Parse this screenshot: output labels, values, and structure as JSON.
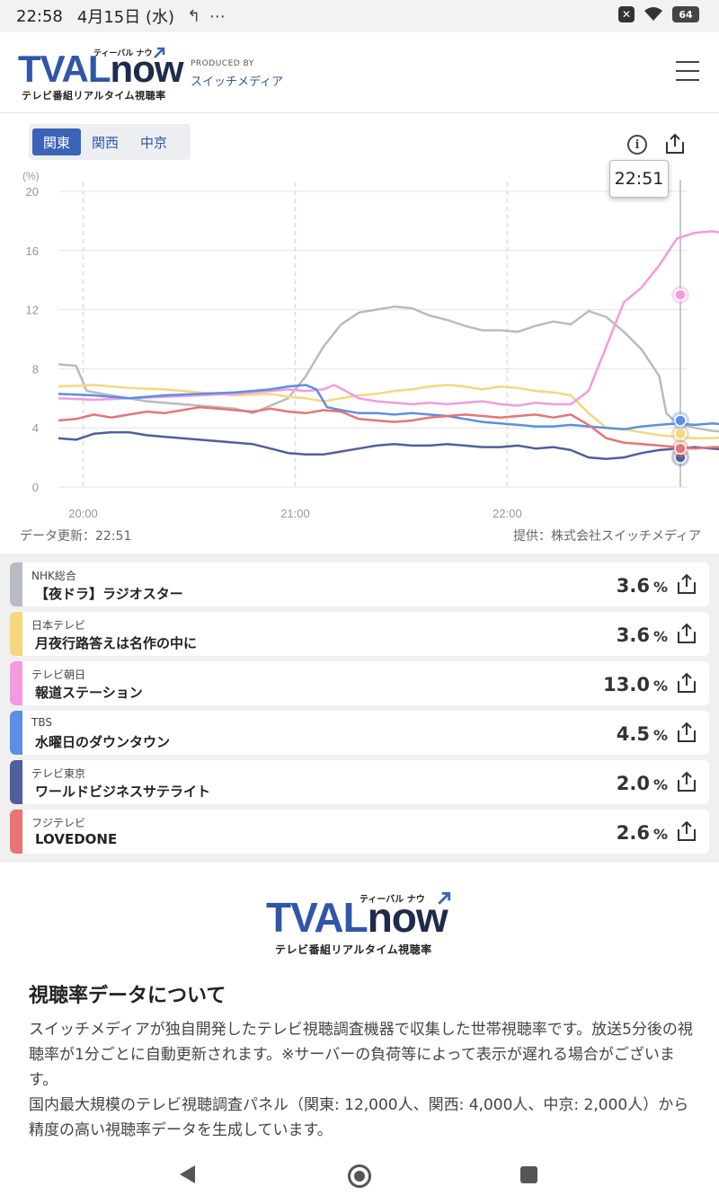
{
  "status_bar": {
    "time": "22:58",
    "date": "4月15日 (水)",
    "icons": "↰ ⋯",
    "battery": "64"
  },
  "header": {
    "logo_tval": "TVAL",
    "logo_now": "now",
    "logo_kana": "ティーバル ナウ",
    "logo_sub": "テレビ番組リアルタイム視聴率",
    "produced_by": "PRODUCED BY",
    "company": "スイッチメディア"
  },
  "tabs": [
    {
      "label": "関東",
      "active": true
    },
    {
      "label": "関西",
      "active": false
    },
    {
      "label": "中京",
      "active": false
    }
  ],
  "tooltip_time": "22:51",
  "chart_data": {
    "type": "line",
    "unit_label": "(%)",
    "ylim": [
      0,
      20
    ],
    "yticks": [
      "20",
      "16",
      "12",
      "8",
      "4",
      "0"
    ],
    "xticks": [
      "20:00",
      "21:00",
      "22:00"
    ],
    "x_range": [
      "19:53",
      "22:51"
    ],
    "grid": true,
    "series": [
      {
        "name": "NHK総合",
        "color": "#b7bcc2",
        "points": [
          [
            0,
            8.3
          ],
          [
            5,
            8.2
          ],
          [
            8,
            6.5
          ],
          [
            15,
            6.2
          ],
          [
            25,
            5.8
          ],
          [
            40,
            5.5
          ],
          [
            50,
            5.3
          ],
          [
            55,
            5.0
          ],
          [
            60,
            5.5
          ],
          [
            65,
            6.0
          ],
          [
            70,
            7.5
          ],
          [
            75,
            9.5
          ],
          [
            80,
            11.0
          ],
          [
            85,
            11.8
          ],
          [
            90,
            12.0
          ],
          [
            95,
            12.2
          ],
          [
            100,
            12.1
          ],
          [
            105,
            11.6
          ],
          [
            110,
            11.3
          ],
          [
            115,
            10.9
          ],
          [
            120,
            10.6
          ],
          [
            125,
            10.6
          ],
          [
            130,
            10.5
          ],
          [
            135,
            10.9
          ],
          [
            140,
            11.2
          ],
          [
            145,
            11.0
          ],
          [
            150,
            11.9
          ],
          [
            155,
            11.5
          ],
          [
            160,
            10.5
          ],
          [
            165,
            9.3
          ],
          [
            170,
            7.5
          ],
          [
            172,
            5.0
          ],
          [
            175,
            4.3
          ],
          [
            180,
            4.0
          ],
          [
            185,
            3.8
          ],
          [
            190,
            3.7
          ],
          [
            195,
            3.7
          ],
          [
            200,
            3.6
          ],
          [
            205,
            3.6
          ],
          [
            210,
            3.6
          ],
          [
            215,
            3.6
          ],
          [
            220,
            3.6
          ],
          [
            225,
            3.6
          ],
          [
            232,
            3.6
          ]
        ]
      },
      {
        "name": "日本テレビ",
        "color": "#f6d77d",
        "points": [
          [
            0,
            6.8
          ],
          [
            10,
            6.9
          ],
          [
            20,
            6.7
          ],
          [
            30,
            6.6
          ],
          [
            40,
            6.4
          ],
          [
            50,
            6.2
          ],
          [
            60,
            6.3
          ],
          [
            65,
            6.1
          ],
          [
            70,
            6.0
          ],
          [
            75,
            5.8
          ],
          [
            80,
            6.0
          ],
          [
            85,
            6.2
          ],
          [
            90,
            6.3
          ],
          [
            95,
            6.5
          ],
          [
            100,
            6.6
          ],
          [
            105,
            6.8
          ],
          [
            110,
            6.9
          ],
          [
            115,
            6.8
          ],
          [
            120,
            6.6
          ],
          [
            125,
            6.8
          ],
          [
            130,
            6.7
          ],
          [
            135,
            6.5
          ],
          [
            140,
            6.4
          ],
          [
            145,
            6.2
          ],
          [
            150,
            5.0
          ],
          [
            155,
            4.0
          ],
          [
            160,
            3.9
          ],
          [
            165,
            3.7
          ],
          [
            170,
            3.5
          ],
          [
            175,
            3.4
          ],
          [
            180,
            3.3
          ],
          [
            185,
            3.3
          ],
          [
            190,
            3.4
          ],
          [
            195,
            3.5
          ],
          [
            200,
            3.4
          ],
          [
            205,
            3.5
          ],
          [
            210,
            3.6
          ],
          [
            215,
            3.6
          ],
          [
            220,
            3.7
          ],
          [
            225,
            3.6
          ],
          [
            232,
            3.6
          ]
        ]
      },
      {
        "name": "テレビ朝日",
        "color": "#f29be0",
        "points": [
          [
            0,
            6.0
          ],
          [
            10,
            5.9
          ],
          [
            20,
            6.0
          ],
          [
            30,
            6.1
          ],
          [
            40,
            6.2
          ],
          [
            50,
            6.3
          ],
          [
            55,
            6.4
          ],
          [
            60,
            6.5
          ],
          [
            65,
            6.6
          ],
          [
            70,
            6.5
          ],
          [
            75,
            6.6
          ],
          [
            78,
            6.9
          ],
          [
            82,
            6.4
          ],
          [
            85,
            6.0
          ],
          [
            90,
            5.8
          ],
          [
            95,
            5.7
          ],
          [
            100,
            5.6
          ],
          [
            105,
            5.7
          ],
          [
            110,
            5.6
          ],
          [
            115,
            5.7
          ],
          [
            120,
            5.8
          ],
          [
            125,
            5.6
          ],
          [
            130,
            5.5
          ],
          [
            135,
            5.7
          ],
          [
            140,
            5.6
          ],
          [
            145,
            5.6
          ],
          [
            150,
            6.5
          ],
          [
            155,
            9.5
          ],
          [
            160,
            12.5
          ],
          [
            165,
            13.5
          ],
          [
            170,
            15.0
          ],
          [
            175,
            16.8
          ],
          [
            180,
            17.2
          ],
          [
            185,
            17.3
          ],
          [
            190,
            17.1
          ],
          [
            195,
            17.2
          ],
          [
            200,
            17.0
          ],
          [
            205,
            16.5
          ],
          [
            210,
            15.0
          ],
          [
            215,
            14.3
          ],
          [
            220,
            13.7
          ],
          [
            225,
            13.3
          ],
          [
            230,
            13.0
          ],
          [
            232,
            13.0
          ]
        ]
      },
      {
        "name": "TBS",
        "color": "#5b8ee6",
        "points": [
          [
            0,
            6.3
          ],
          [
            10,
            6.2
          ],
          [
            20,
            6.0
          ],
          [
            30,
            6.2
          ],
          [
            40,
            6.3
          ],
          [
            50,
            6.4
          ],
          [
            60,
            6.6
          ],
          [
            65,
            6.8
          ],
          [
            70,
            6.9
          ],
          [
            73,
            6.6
          ],
          [
            76,
            5.4
          ],
          [
            80,
            5.2
          ],
          [
            85,
            5.0
          ],
          [
            90,
            5.0
          ],
          [
            95,
            4.9
          ],
          [
            100,
            5.0
          ],
          [
            105,
            4.9
          ],
          [
            110,
            4.8
          ],
          [
            115,
            4.6
          ],
          [
            120,
            4.4
          ],
          [
            125,
            4.3
          ],
          [
            130,
            4.2
          ],
          [
            135,
            4.1
          ],
          [
            140,
            4.1
          ],
          [
            145,
            4.2
          ],
          [
            150,
            4.1
          ],
          [
            155,
            4.0
          ],
          [
            160,
            3.9
          ],
          [
            165,
            4.1
          ],
          [
            170,
            4.2
          ],
          [
            175,
            4.3
          ],
          [
            180,
            4.2
          ],
          [
            185,
            4.3
          ],
          [
            190,
            4.2
          ],
          [
            195,
            4.1
          ],
          [
            200,
            4.2
          ],
          [
            205,
            4.0
          ],
          [
            210,
            4.1
          ],
          [
            215,
            4.3
          ],
          [
            220,
            4.4
          ],
          [
            225,
            4.5
          ],
          [
            232,
            4.5
          ]
        ]
      },
      {
        "name": "テレビ東京",
        "color": "#4f5f9e",
        "points": [
          [
            0,
            3.3
          ],
          [
            5,
            3.2
          ],
          [
            10,
            3.6
          ],
          [
            15,
            3.7
          ],
          [
            20,
            3.7
          ],
          [
            25,
            3.5
          ],
          [
            30,
            3.4
          ],
          [
            35,
            3.3
          ],
          [
            40,
            3.2
          ],
          [
            45,
            3.1
          ],
          [
            50,
            3.0
          ],
          [
            55,
            2.9
          ],
          [
            60,
            2.6
          ],
          [
            65,
            2.3
          ],
          [
            70,
            2.2
          ],
          [
            75,
            2.2
          ],
          [
            80,
            2.4
          ],
          [
            85,
            2.6
          ],
          [
            90,
            2.8
          ],
          [
            95,
            2.9
          ],
          [
            100,
            2.8
          ],
          [
            105,
            2.8
          ],
          [
            110,
            2.9
          ],
          [
            115,
            2.8
          ],
          [
            120,
            2.7
          ],
          [
            125,
            2.7
          ],
          [
            130,
            2.8
          ],
          [
            135,
            2.6
          ],
          [
            140,
            2.7
          ],
          [
            145,
            2.5
          ],
          [
            150,
            2.0
          ],
          [
            155,
            1.9
          ],
          [
            160,
            2.0
          ],
          [
            165,
            2.3
          ],
          [
            170,
            2.5
          ],
          [
            175,
            2.6
          ],
          [
            180,
            2.7
          ],
          [
            185,
            2.6
          ],
          [
            190,
            2.5
          ],
          [
            195,
            2.4
          ],
          [
            200,
            2.5
          ],
          [
            205,
            2.3
          ],
          [
            210,
            2.2
          ],
          [
            215,
            2.2
          ],
          [
            220,
            2.1
          ],
          [
            225,
            2.0
          ],
          [
            232,
            2.0
          ]
        ]
      },
      {
        "name": "フジテレビ",
        "color": "#e87474",
        "points": [
          [
            0,
            4.5
          ],
          [
            5,
            4.6
          ],
          [
            10,
            4.9
          ],
          [
            15,
            4.7
          ],
          [
            20,
            4.9
          ],
          [
            25,
            5.1
          ],
          [
            30,
            5.0
          ],
          [
            35,
            5.2
          ],
          [
            40,
            5.4
          ],
          [
            45,
            5.3
          ],
          [
            50,
            5.2
          ],
          [
            55,
            5.1
          ],
          [
            60,
            5.3
          ],
          [
            65,
            5.1
          ],
          [
            70,
            5.0
          ],
          [
            75,
            5.2
          ],
          [
            80,
            5.1
          ],
          [
            85,
            4.6
          ],
          [
            90,
            4.5
          ],
          [
            95,
            4.4
          ],
          [
            100,
            4.5
          ],
          [
            105,
            4.7
          ],
          [
            110,
            4.8
          ],
          [
            115,
            4.9
          ],
          [
            120,
            4.8
          ],
          [
            125,
            4.7
          ],
          [
            130,
            4.8
          ],
          [
            135,
            4.9
          ],
          [
            140,
            4.7
          ],
          [
            145,
            4.9
          ],
          [
            150,
            4.2
          ],
          [
            155,
            3.3
          ],
          [
            160,
            3.0
          ],
          [
            165,
            2.9
          ],
          [
            170,
            2.8
          ],
          [
            175,
            2.7
          ],
          [
            180,
            2.6
          ],
          [
            185,
            2.7
          ],
          [
            190,
            2.7
          ],
          [
            195,
            2.6
          ],
          [
            200,
            2.7
          ],
          [
            205,
            2.8
          ],
          [
            210,
            2.8
          ],
          [
            215,
            2.8
          ],
          [
            220,
            2.7
          ],
          [
            225,
            2.6
          ],
          [
            232,
            2.6
          ]
        ]
      }
    ]
  },
  "chart_footer": {
    "updated": "データ更新：22:51",
    "source": "提供：株式会社スイッチメディア"
  },
  "channels": [
    {
      "station": "NHK総合",
      "program": "【夜ドラ】ラジオスター",
      "rating": "3.6",
      "unit": "%",
      "color": "#b7bcc2"
    },
    {
      "station": "日本テレビ",
      "program": "月夜行路答えは名作の中に",
      "rating": "3.6",
      "unit": "%",
      "color": "#f6d77d"
    },
    {
      "station": "テレビ朝日",
      "program": "報道ステーション",
      "rating": "13.0",
      "unit": "%",
      "color": "#f29be0"
    },
    {
      "station": "TBS",
      "program": "水曜日のダウンタウン",
      "rating": "4.5",
      "unit": "%",
      "color": "#5b8ee6"
    },
    {
      "station": "テレビ東京",
      "program": "ワールドビジネスサテライト",
      "rating": "2.0",
      "unit": "%",
      "color": "#4f5f9e"
    },
    {
      "station": "フジテレビ",
      "program": "LOVEDONE",
      "rating": "2.6",
      "unit": "%",
      "color": "#e87474"
    }
  ],
  "about": {
    "title": "視聴率データについて",
    "para1": "スイッチメディアが独自開発したテレビ視聴調査機器で収集した世帯視聴率です。放送5分後の視聴率が1分ごとに自動更新されます。※サーバーの負荷等によって表示が遅れる場合がございます。",
    "para2": "国内最大規模のテレビ視聴調査パネル（関東: 12,000人、関西: 4,000人、中京: 2,000人）から精度の高い視聴率データを生成しています。"
  }
}
